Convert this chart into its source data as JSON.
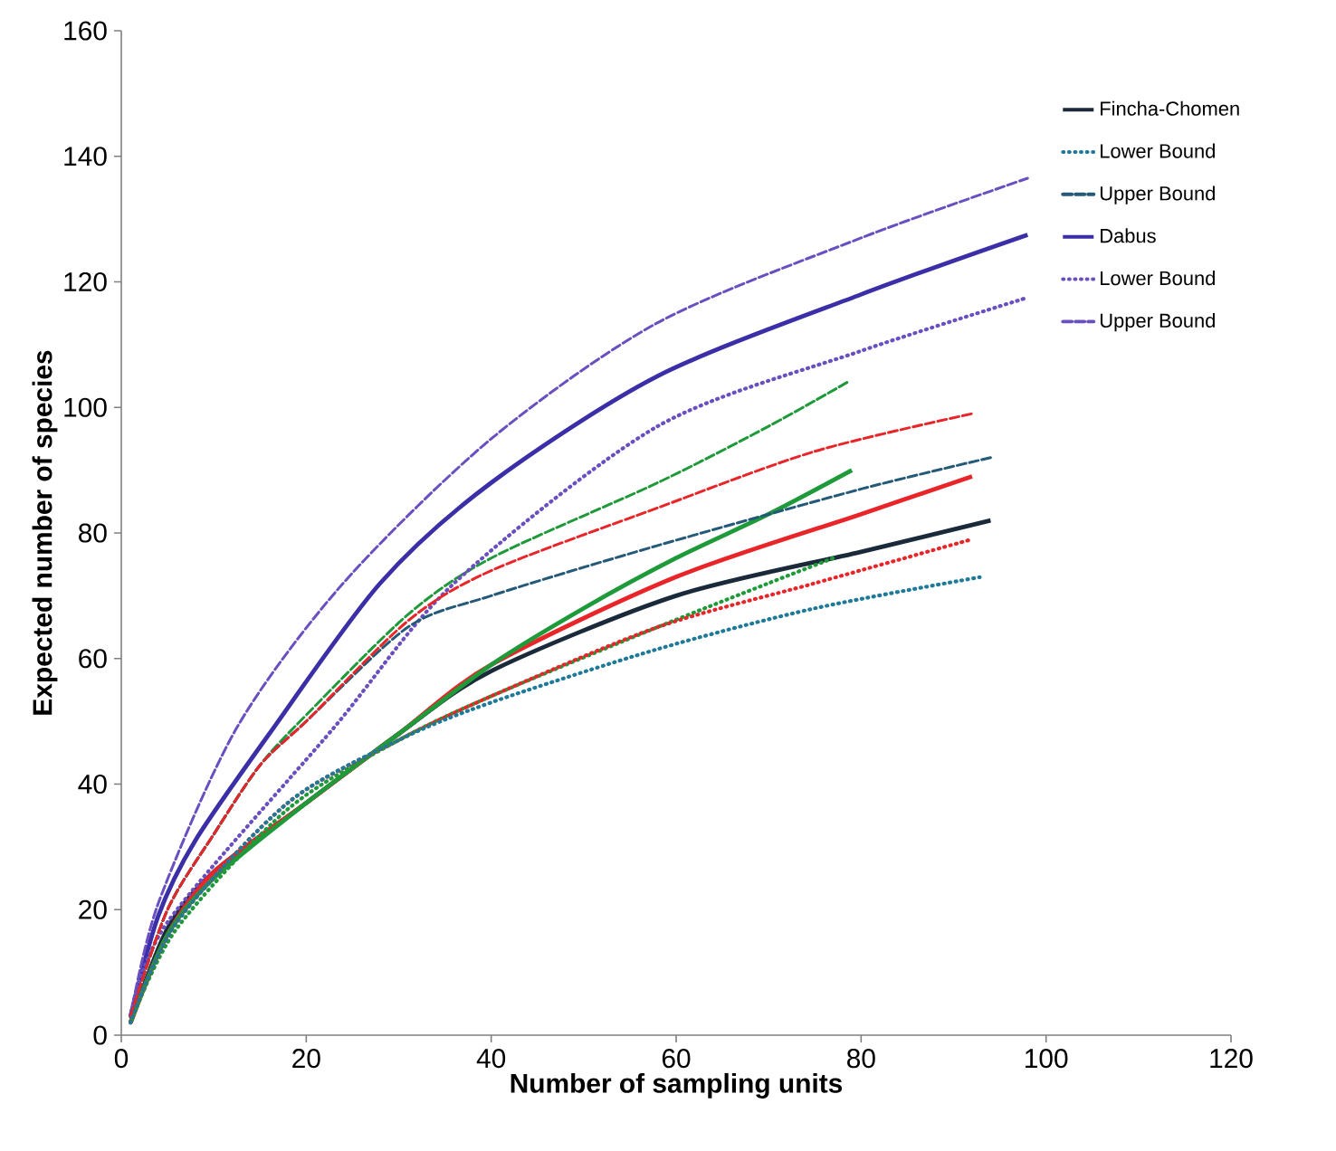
{
  "chart_data": {
    "type": "line",
    "xlabel": "Number of sampling units",
    "ylabel": "Expected number of species",
    "xlim": [
      0,
      120
    ],
    "ylim": [
      0,
      160
    ],
    "xticks": [
      0,
      20,
      40,
      60,
      80,
      100,
      120
    ],
    "yticks": [
      0,
      20,
      40,
      60,
      80,
      100,
      120,
      140,
      160
    ],
    "legend": "right",
    "marker": "none",
    "series": [
      {
        "name": "Fincha-Chomen",
        "color": "#1b2a3a",
        "line_style": "solid",
        "x": [
          1,
          5,
          10,
          20,
          30,
          40,
          60,
          80,
          94
        ],
        "values": [
          2,
          17,
          26,
          37,
          48,
          58,
          70,
          77,
          82
        ]
      },
      {
        "name": "Lower Bound",
        "color": "#1f7a99",
        "line_style": "dotted",
        "x": [
          1,
          6,
          18,
          30,
          40,
          58,
          75,
          93
        ],
        "values": [
          2,
          18,
          37,
          47,
          53,
          61.5,
          68,
          73
        ]
      },
      {
        "name": "Upper Bound",
        "color": "#245a78",
        "line_style": "dashed",
        "x": [
          1,
          5,
          10,
          15,
          20,
          31,
          40,
          58,
          80,
          94
        ],
        "values": [
          3,
          20,
          32,
          43,
          50,
          65,
          70,
          78,
          87,
          92
        ]
      },
      {
        "name": "Dabus",
        "color": "#3b2fa8",
        "line_style": "solid",
        "x": [
          1,
          4,
          8,
          16,
          28,
          40,
          58,
          80,
          98
        ],
        "values": [
          3,
          19,
          31,
          48,
          72,
          88,
          105,
          118,
          127.5
        ]
      },
      {
        "name": "Lower Bound",
        "color": "#6a4fc0",
        "line_style": "dotted",
        "x": [
          1,
          5,
          23,
          36,
          58,
          80,
          98
        ],
        "values": [
          3,
          18,
          49,
          72,
          97,
          109,
          117.5
        ]
      },
      {
        "name": "Upper Bound",
        "color": "#6a4fc0",
        "line_style": "dashed",
        "x": [
          1,
          4,
          12.5,
          24,
          40,
          58,
          80,
          98
        ],
        "values": [
          3,
          21,
          49,
          72,
          95,
          113.5,
          127,
          136.5
        ]
      },
      {
        "color": "#e8262a",
        "line_style": "solid",
        "x": [
          1,
          5,
          10,
          20,
          30,
          40,
          60,
          80,
          92
        ],
        "values": [
          2,
          16,
          26,
          37,
          48,
          59,
          73,
          83,
          89
        ]
      },
      {
        "color": "#e8262a",
        "line_style": "dotted",
        "x": [
          1,
          6,
          18,
          30,
          40,
          58,
          75,
          92
        ],
        "values": [
          2,
          18,
          37,
          47,
          54,
          65,
          72,
          79
        ]
      },
      {
        "color": "#e8262a",
        "line_style": "dashed",
        "x": [
          1,
          5,
          10,
          15,
          20,
          31,
          40,
          58,
          75,
          92
        ],
        "values": [
          3,
          20,
          32,
          43,
          50,
          66,
          74,
          84,
          93,
          99
        ]
      },
      {
        "color": "#1f9a3a",
        "line_style": "solid",
        "x": [
          1,
          5,
          10,
          20,
          30,
          40,
          50,
          60,
          70,
          79
        ],
        "values": [
          2,
          16,
          25,
          37,
          48,
          59,
          68,
          76,
          83,
          90
        ]
      },
      {
        "color": "#1f9a3a",
        "line_style": "dotted",
        "x": [
          1,
          6,
          18,
          30,
          40,
          58,
          70,
          77
        ],
        "values": [
          2,
          17,
          36,
          47,
          54,
          65,
          72,
          76
        ]
      },
      {
        "color": "#1f9a3a",
        "line_style": "dashed",
        "x": [
          1,
          5,
          10,
          15,
          20,
          31,
          40,
          58,
          70,
          78.5
        ],
        "values": [
          3,
          20,
          32,
          43,
          51,
          67,
          76,
          88,
          97,
          104
        ]
      }
    ]
  }
}
